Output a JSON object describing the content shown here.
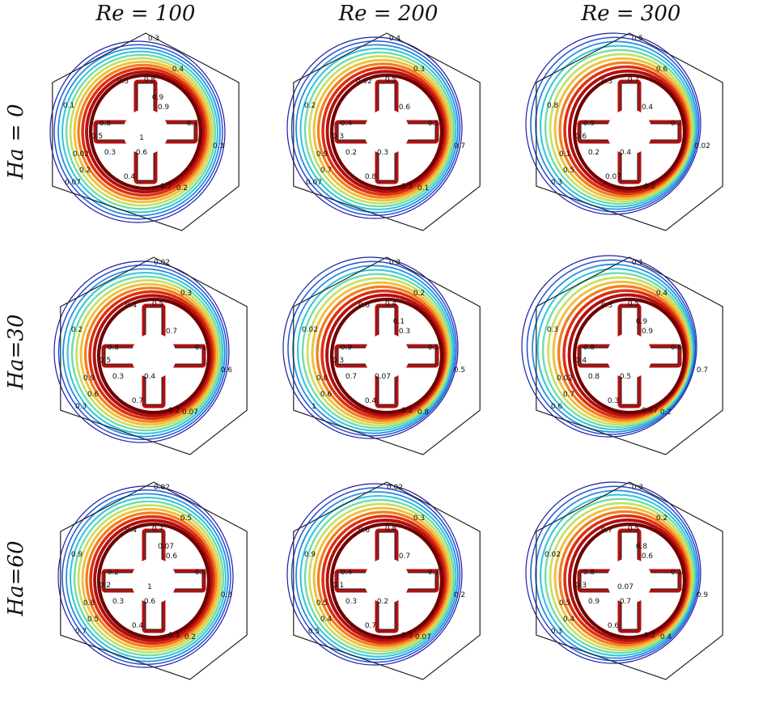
{
  "columns": [
    "Re = 100",
    "Re = 200",
    "Re = 300"
  ],
  "rows": [
    "Ha = 0",
    "Ha=30",
    "Ha=60"
  ],
  "colors": {
    "palette": [
      "#1e1ea0",
      "#2050d8",
      "#2a8be0",
      "#30c8d8",
      "#70dcb0",
      "#c8e060",
      "#f0c040",
      "#f08020",
      "#e03010",
      "#b01010",
      "#700000"
    ],
    "outline": "#222222"
  },
  "panels": [
    {
      "labels": [
        "0.3",
        "0.4",
        "0.5",
        "0.8",
        "0.3",
        "0.02",
        "0.1",
        "0.9",
        "0.8",
        "0.5",
        "0.7",
        "0.3",
        "0.6",
        "0.2",
        "0.07",
        "0.4",
        "0.7",
        "0.2",
        "0.9",
        "1"
      ]
    },
    {
      "labels": [
        "0.4",
        "0.3",
        "0.02",
        "0.5",
        "0.7",
        "0.9",
        "0.2",
        "0.6",
        "0.4",
        "0.3",
        "0.5",
        "0.2",
        "0.3",
        "0.7",
        "0.07",
        "0.8",
        "0.5",
        "0.1"
      ]
    },
    {
      "labels": [
        "0.5",
        "0.6",
        "0.3",
        "0.7",
        "0.02",
        "0.1",
        "0.8",
        "0.4",
        "0.9",
        "0.6",
        "0.7",
        "0.2",
        "0.4",
        "0.5",
        "0.3",
        "0.07",
        "0.2"
      ]
    },
    {
      "labels": [
        "0.02",
        "0.3",
        "0.4",
        "0.5",
        "0.6",
        "0.9",
        "0.2",
        "0.7",
        "0.8",
        "0.5",
        "0.1",
        "0.3",
        "0.4",
        "0.6",
        "0.3",
        "0.7",
        "0.2",
        "0.07"
      ]
    },
    {
      "labels": [
        "0.3",
        "0.2",
        "0.6",
        "0.4",
        "0.5",
        "0.8",
        "0.02",
        "0.3",
        "0.9",
        "0.3",
        "0.5",
        "0.7",
        "0.07",
        "0.6",
        "1",
        "0.4",
        "0.2",
        "0.8",
        "0.1"
      ]
    },
    {
      "labels": [
        "0.1",
        "0.4",
        "0.3",
        "0.5",
        "0.7",
        "0.02",
        "0.3",
        "0.9",
        "0.8",
        "0.4",
        "0.6",
        "0.8",
        "0.5",
        "0.7",
        "0.6",
        "0.3",
        "0.07",
        "0.2",
        "0.9"
      ]
    },
    {
      "labels": [
        "0.02",
        "0.5",
        "0.4",
        "0.7",
        "0.3",
        "0.8",
        "0.9",
        "0.6",
        "0.2",
        "0.2",
        "0.8",
        "0.3",
        "0.6",
        "0.5",
        "0.7",
        "0.4",
        "0.3",
        "0.2",
        "0.07",
        "1"
      ]
    },
    {
      "labels": [
        "0.02",
        "0.3",
        "0.6",
        "0.8",
        "0.2",
        "0.5",
        "0.9",
        "0.7",
        "0.4",
        "0.1",
        "0.7",
        "0.3",
        "0.2",
        "0.4",
        "0.5",
        "0.7",
        "0.3",
        "0.07"
      ]
    },
    {
      "labels": [
        "0.3",
        "0.2",
        "0.7",
        "0.5",
        "0.9",
        "0.5",
        "0.02",
        "0.6",
        "0.8",
        "0.3",
        "0.1",
        "0.9",
        "0.7",
        "0.4",
        "0.3",
        "0.6",
        "0.2",
        "0.4",
        "0.8",
        "0.07"
      ]
    }
  ]
}
